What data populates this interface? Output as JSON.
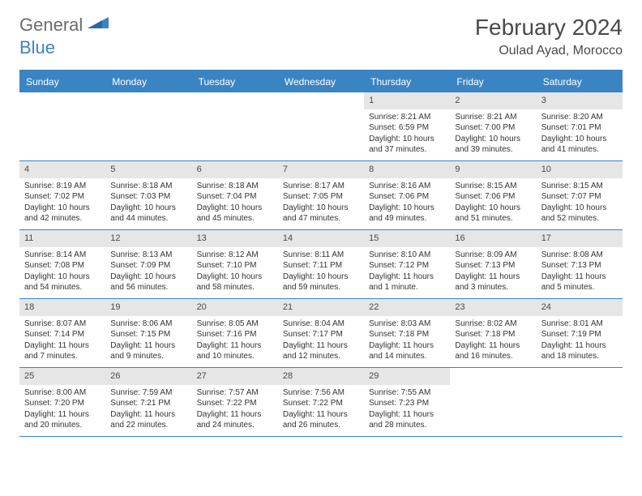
{
  "logo": {
    "general": "General",
    "blue": "Blue"
  },
  "title": {
    "month": "February 2024",
    "location": "Oulad Ayad, Morocco"
  },
  "colors": {
    "primary": "#3b84c4",
    "header_text": "#ffffff",
    "daynum_bg": "#e6e6e6",
    "text": "#333333",
    "title_text": "#4a4a4a",
    "logo_gray": "#6b6b6b"
  },
  "day_headers": [
    "Sunday",
    "Monday",
    "Tuesday",
    "Wednesday",
    "Thursday",
    "Friday",
    "Saturday"
  ],
  "weeks": [
    [
      {
        "empty": true
      },
      {
        "empty": true
      },
      {
        "empty": true
      },
      {
        "empty": true
      },
      {
        "num": "1",
        "sunrise": "Sunrise: 8:21 AM",
        "sunset": "Sunset: 6:59 PM",
        "daylight": "Daylight: 10 hours and 37 minutes."
      },
      {
        "num": "2",
        "sunrise": "Sunrise: 8:21 AM",
        "sunset": "Sunset: 7:00 PM",
        "daylight": "Daylight: 10 hours and 39 minutes."
      },
      {
        "num": "3",
        "sunrise": "Sunrise: 8:20 AM",
        "sunset": "Sunset: 7:01 PM",
        "daylight": "Daylight: 10 hours and 41 minutes."
      }
    ],
    [
      {
        "num": "4",
        "sunrise": "Sunrise: 8:19 AM",
        "sunset": "Sunset: 7:02 PM",
        "daylight": "Daylight: 10 hours and 42 minutes."
      },
      {
        "num": "5",
        "sunrise": "Sunrise: 8:18 AM",
        "sunset": "Sunset: 7:03 PM",
        "daylight": "Daylight: 10 hours and 44 minutes."
      },
      {
        "num": "6",
        "sunrise": "Sunrise: 8:18 AM",
        "sunset": "Sunset: 7:04 PM",
        "daylight": "Daylight: 10 hours and 45 minutes."
      },
      {
        "num": "7",
        "sunrise": "Sunrise: 8:17 AM",
        "sunset": "Sunset: 7:05 PM",
        "daylight": "Daylight: 10 hours and 47 minutes."
      },
      {
        "num": "8",
        "sunrise": "Sunrise: 8:16 AM",
        "sunset": "Sunset: 7:06 PM",
        "daylight": "Daylight: 10 hours and 49 minutes."
      },
      {
        "num": "9",
        "sunrise": "Sunrise: 8:15 AM",
        "sunset": "Sunset: 7:06 PM",
        "daylight": "Daylight: 10 hours and 51 minutes."
      },
      {
        "num": "10",
        "sunrise": "Sunrise: 8:15 AM",
        "sunset": "Sunset: 7:07 PM",
        "daylight": "Daylight: 10 hours and 52 minutes."
      }
    ],
    [
      {
        "num": "11",
        "sunrise": "Sunrise: 8:14 AM",
        "sunset": "Sunset: 7:08 PM",
        "daylight": "Daylight: 10 hours and 54 minutes."
      },
      {
        "num": "12",
        "sunrise": "Sunrise: 8:13 AM",
        "sunset": "Sunset: 7:09 PM",
        "daylight": "Daylight: 10 hours and 56 minutes."
      },
      {
        "num": "13",
        "sunrise": "Sunrise: 8:12 AM",
        "sunset": "Sunset: 7:10 PM",
        "daylight": "Daylight: 10 hours and 58 minutes."
      },
      {
        "num": "14",
        "sunrise": "Sunrise: 8:11 AM",
        "sunset": "Sunset: 7:11 PM",
        "daylight": "Daylight: 10 hours and 59 minutes."
      },
      {
        "num": "15",
        "sunrise": "Sunrise: 8:10 AM",
        "sunset": "Sunset: 7:12 PM",
        "daylight": "Daylight: 11 hours and 1 minute."
      },
      {
        "num": "16",
        "sunrise": "Sunrise: 8:09 AM",
        "sunset": "Sunset: 7:13 PM",
        "daylight": "Daylight: 11 hours and 3 minutes."
      },
      {
        "num": "17",
        "sunrise": "Sunrise: 8:08 AM",
        "sunset": "Sunset: 7:13 PM",
        "daylight": "Daylight: 11 hours and 5 minutes."
      }
    ],
    [
      {
        "num": "18",
        "sunrise": "Sunrise: 8:07 AM",
        "sunset": "Sunset: 7:14 PM",
        "daylight": "Daylight: 11 hours and 7 minutes."
      },
      {
        "num": "19",
        "sunrise": "Sunrise: 8:06 AM",
        "sunset": "Sunset: 7:15 PM",
        "daylight": "Daylight: 11 hours and 9 minutes."
      },
      {
        "num": "20",
        "sunrise": "Sunrise: 8:05 AM",
        "sunset": "Sunset: 7:16 PM",
        "daylight": "Daylight: 11 hours and 10 minutes."
      },
      {
        "num": "21",
        "sunrise": "Sunrise: 8:04 AM",
        "sunset": "Sunset: 7:17 PM",
        "daylight": "Daylight: 11 hours and 12 minutes."
      },
      {
        "num": "22",
        "sunrise": "Sunrise: 8:03 AM",
        "sunset": "Sunset: 7:18 PM",
        "daylight": "Daylight: 11 hours and 14 minutes."
      },
      {
        "num": "23",
        "sunrise": "Sunrise: 8:02 AM",
        "sunset": "Sunset: 7:18 PM",
        "daylight": "Daylight: 11 hours and 16 minutes."
      },
      {
        "num": "24",
        "sunrise": "Sunrise: 8:01 AM",
        "sunset": "Sunset: 7:19 PM",
        "daylight": "Daylight: 11 hours and 18 minutes."
      }
    ],
    [
      {
        "num": "25",
        "sunrise": "Sunrise: 8:00 AM",
        "sunset": "Sunset: 7:20 PM",
        "daylight": "Daylight: 11 hours and 20 minutes."
      },
      {
        "num": "26",
        "sunrise": "Sunrise: 7:59 AM",
        "sunset": "Sunset: 7:21 PM",
        "daylight": "Daylight: 11 hours and 22 minutes."
      },
      {
        "num": "27",
        "sunrise": "Sunrise: 7:57 AM",
        "sunset": "Sunset: 7:22 PM",
        "daylight": "Daylight: 11 hours and 24 minutes."
      },
      {
        "num": "28",
        "sunrise": "Sunrise: 7:56 AM",
        "sunset": "Sunset: 7:22 PM",
        "daylight": "Daylight: 11 hours and 26 minutes."
      },
      {
        "num": "29",
        "sunrise": "Sunrise: 7:55 AM",
        "sunset": "Sunset: 7:23 PM",
        "daylight": "Daylight: 11 hours and 28 minutes."
      },
      {
        "empty": true
      },
      {
        "empty": true
      }
    ]
  ]
}
